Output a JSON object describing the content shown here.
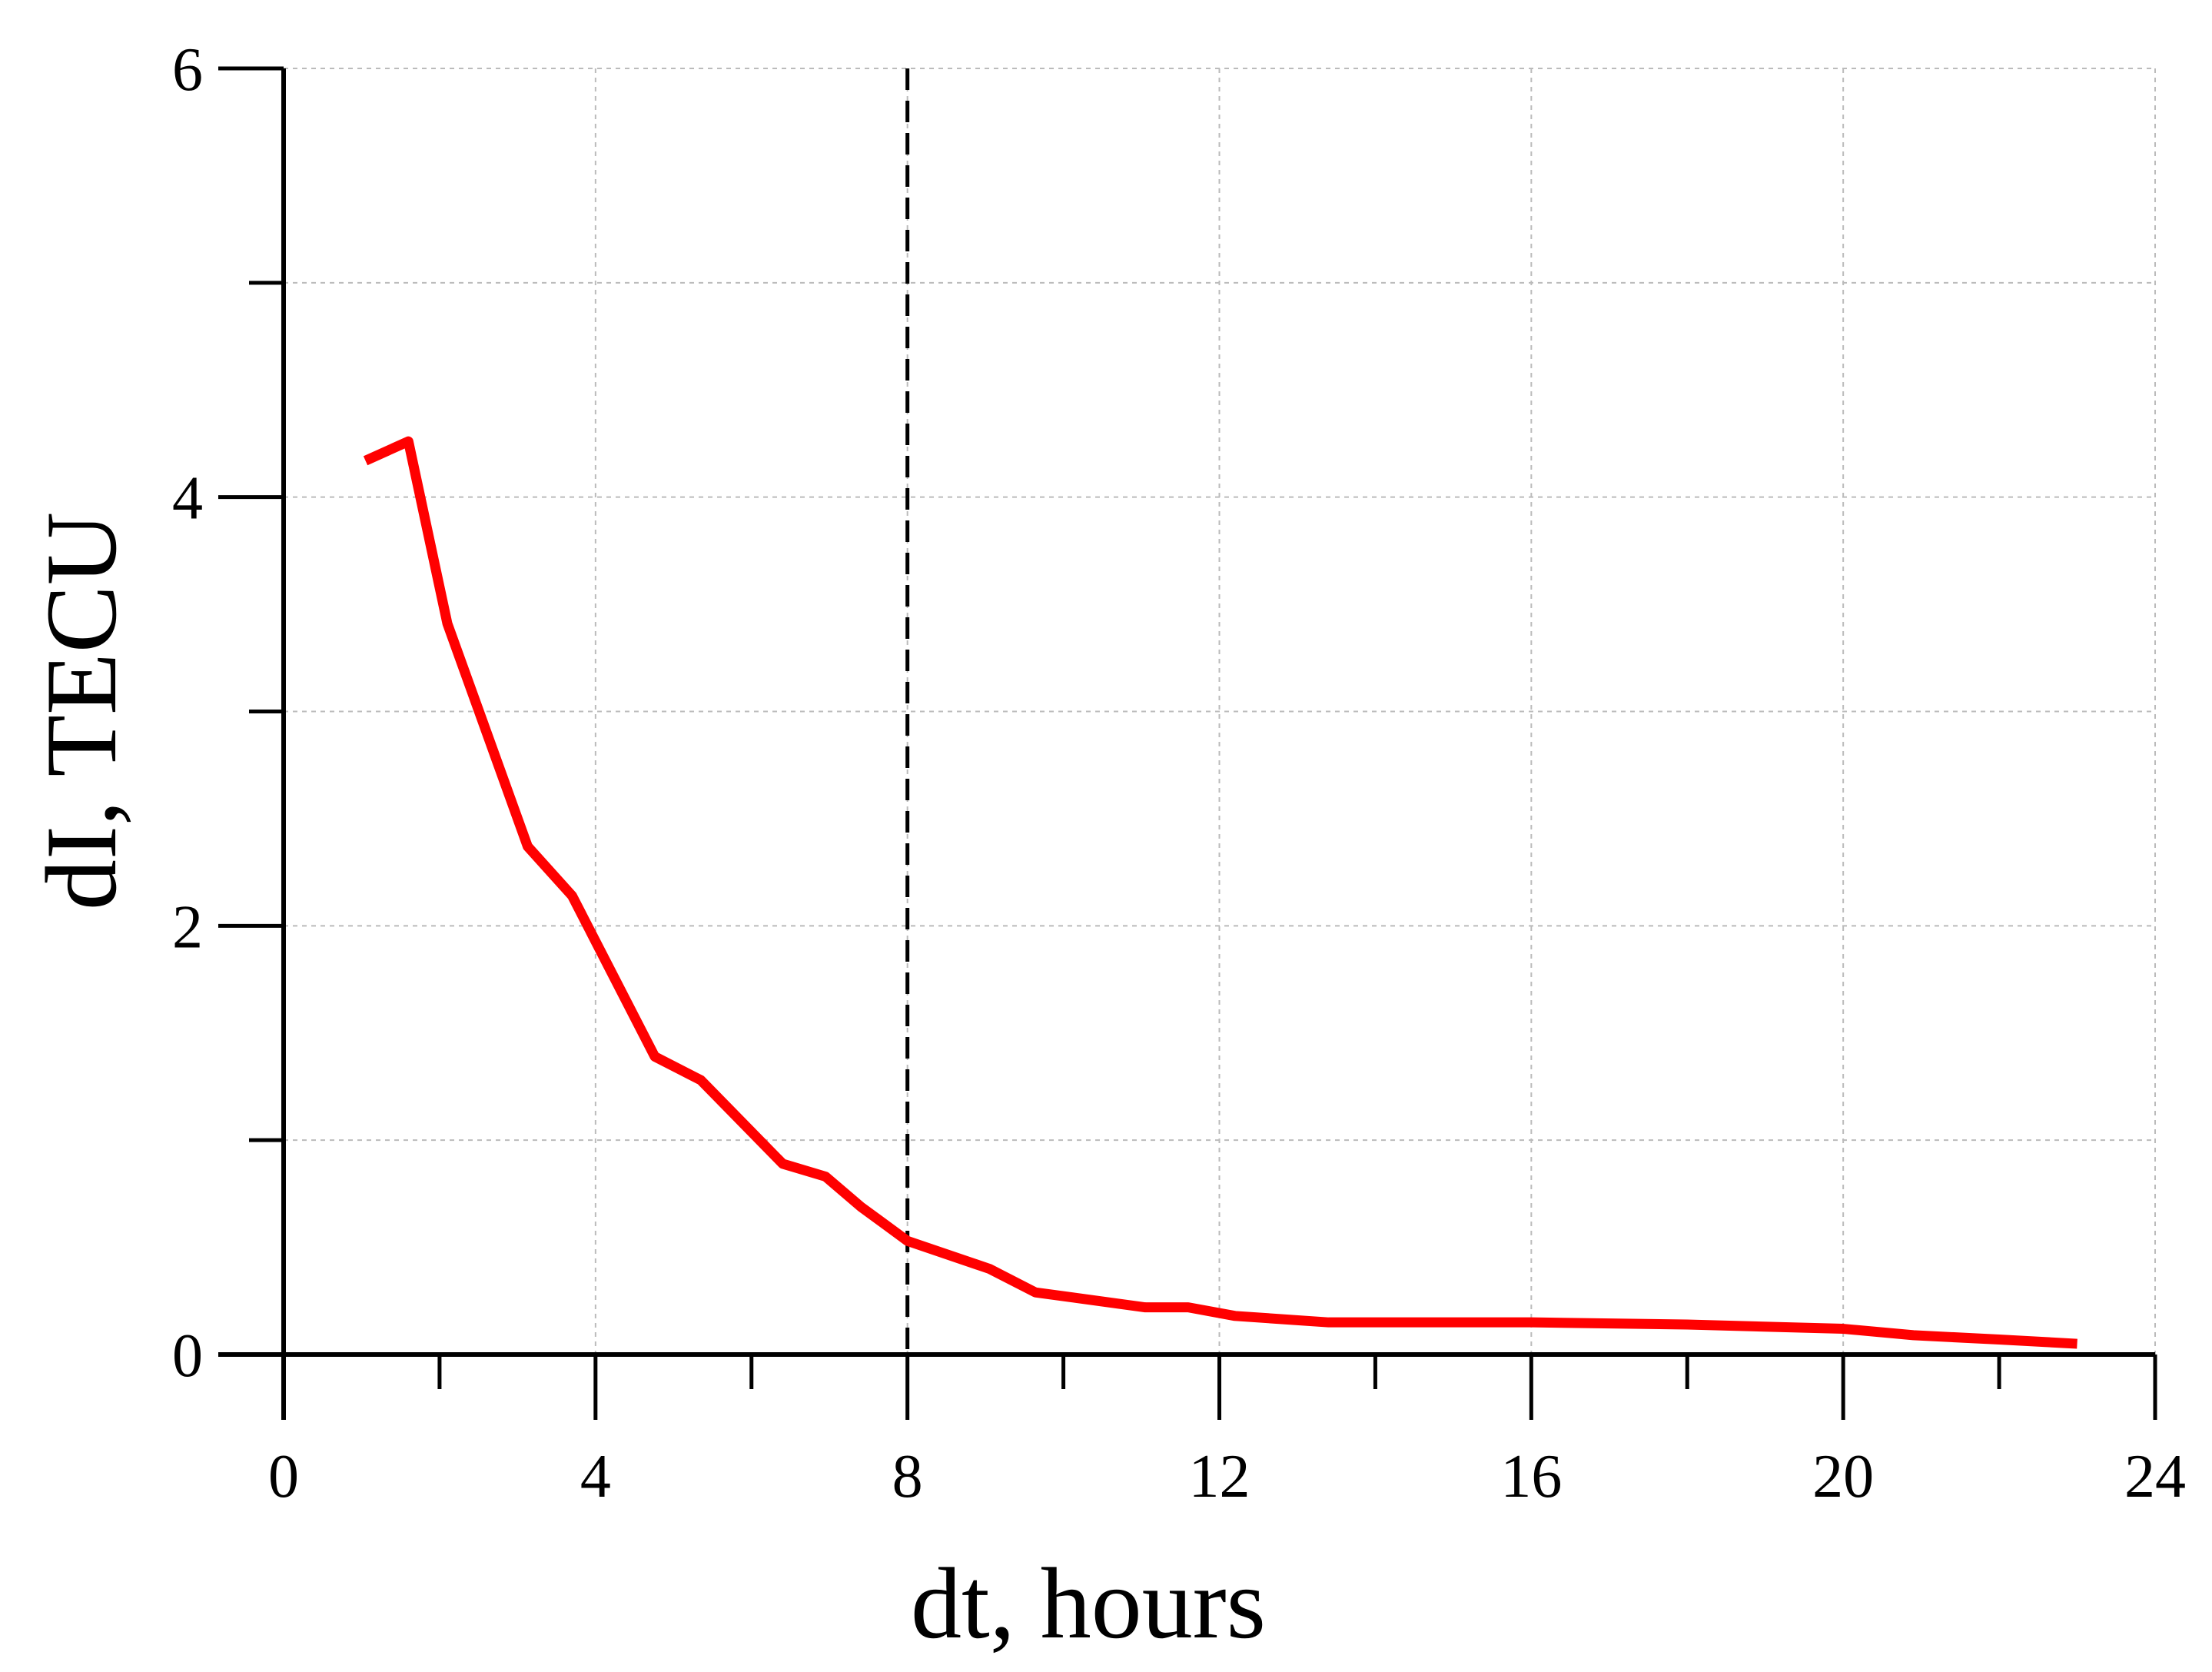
{
  "chart_data": {
    "type": "line",
    "x_label": "dt, hours",
    "y_label": "dI, TECU",
    "xlim": [
      0,
      24
    ],
    "xticks": [
      0,
      4,
      8,
      12,
      16,
      20,
      24
    ],
    "minor_xticks": [
      2,
      6,
      10,
      14,
      18,
      22
    ],
    "ylim": [
      0,
      6
    ],
    "yticks": [
      0,
      2,
      4,
      6
    ],
    "minor_yticks": [
      1,
      3,
      5
    ],
    "grid": true,
    "vline": 8,
    "series": [
      {
        "color": "#ff0000",
        "x": [
          1.05,
          1.6,
          2.1,
          3.13,
          3.7,
          4.76,
          5.35,
          6.4,
          6.95,
          7.4,
          8.0,
          9.05,
          9.64,
          11.05,
          11.6,
          12.2,
          13.4,
          16,
          18,
          20,
          20.9,
          22,
          23
        ],
        "values": [
          4.17,
          4.26,
          3.41,
          2.37,
          2.14,
          1.39,
          1.28,
          0.89,
          0.83,
          0.69,
          0.53,
          0.4,
          0.29,
          0.22,
          0.22,
          0.18,
          0.15,
          0.15,
          0.14,
          0.12,
          0.09,
          0.07,
          0.05
        ]
      }
    ]
  }
}
